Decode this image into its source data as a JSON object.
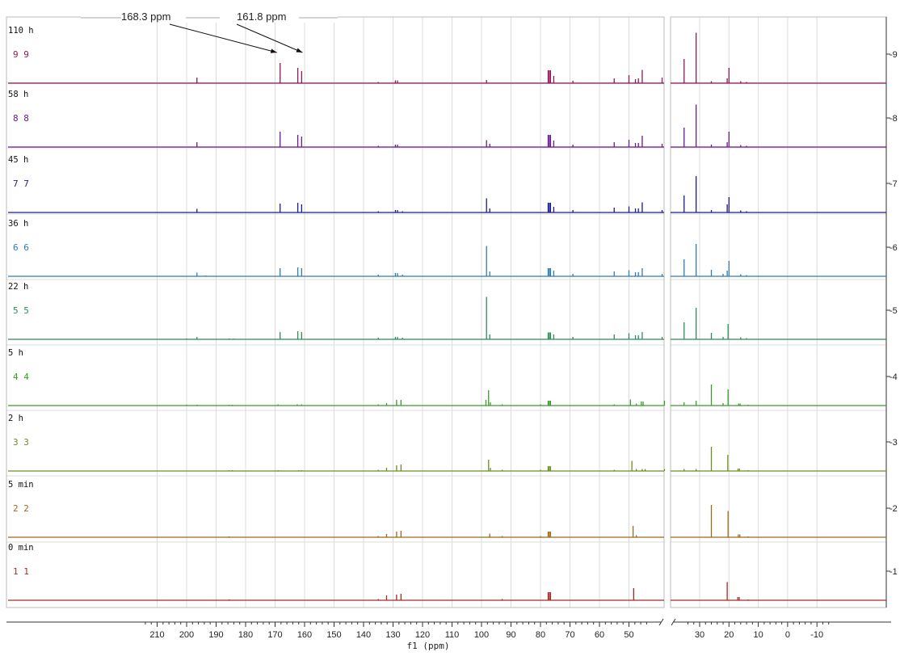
{
  "chart_data": {
    "type": "line",
    "title": "",
    "xlabel": "f1 (ppm)",
    "ylabel": "",
    "x_axis": {
      "reversed": true,
      "break": [
        34,
        43
      ],
      "ticks": [
        210,
        200,
        190,
        180,
        170,
        160,
        150,
        140,
        130,
        120,
        110,
        100,
        90,
        80,
        70,
        60,
        50,
        30,
        20,
        10,
        0,
        -10
      ],
      "tick_labels": [
        "210",
        "200",
        "190",
        "180",
        "170",
        "160",
        "150",
        "140",
        "130",
        "120",
        "110",
        "100",
        "90",
        "80",
        "70",
        "60",
        "50",
        "30",
        "20",
        "10",
        "0",
        "-10"
      ]
    },
    "y_axis": {
      "side": "right",
      "ticks": [
        1,
        2,
        3,
        4,
        5,
        6,
        7,
        8,
        9
      ],
      "tick_labels": [
        "1",
        "2",
        "3",
        "4",
        "5",
        "6",
        "7",
        "8",
        "9"
      ]
    },
    "grid": true,
    "legend": "none",
    "annotations": [
      {
        "text": "168.3 ppm",
        "points_to_ppm": 168.3,
        "trace": 9
      },
      {
        "text": "161.8 ppm",
        "points_to_ppm": 161.8,
        "trace": 9
      }
    ],
    "series": [
      {
        "index": 1,
        "time_label": "0 min",
        "row_label": "1 1",
        "color": "#a52a2a",
        "peaks": [
          [
            185.6,
            0.02
          ],
          [
            135,
            0.03
          ],
          [
            132.2,
            0.12
          ],
          [
            128.8,
            0.14
          ],
          [
            127.3,
            0.16
          ],
          [
            93,
            0.03
          ],
          [
            77.4,
            0.2
          ],
          [
            77.0,
            0.2
          ],
          [
            76.6,
            0.2
          ],
          [
            48.4,
            0.3
          ],
          [
            20.6,
            0.45
          ],
          [
            17.0,
            0.08
          ],
          [
            16.5,
            0.08
          ],
          [
            13.5,
            0.02
          ]
        ]
      },
      {
        "index": 2,
        "time_label": "5 min",
        "row_label": "2 2",
        "color": "#9a6a1a",
        "peaks": [
          [
            185.6,
            0.02
          ],
          [
            135,
            0.03
          ],
          [
            132.2,
            0.08
          ],
          [
            128.8,
            0.14
          ],
          [
            127.3,
            0.16
          ],
          [
            97.2,
            0.09
          ],
          [
            93,
            0.03
          ],
          [
            80,
            0.03
          ],
          [
            77.4,
            0.14
          ],
          [
            77.0,
            0.14
          ],
          [
            76.6,
            0.14
          ],
          [
            48.6,
            0.28
          ],
          [
            47.5,
            0.05
          ],
          [
            26.0,
            0.8
          ],
          [
            20.3,
            0.65
          ],
          [
            16.8,
            0.07
          ],
          [
            16.3,
            0.07
          ],
          [
            13.5,
            0.02
          ]
        ]
      },
      {
        "index": 3,
        "time_label": "2 h",
        "row_label": "3 3",
        "color": "#6b8e23",
        "peaks": [
          [
            185.6,
            0.02
          ],
          [
            184.5,
            0.02
          ],
          [
            169,
            0.02
          ],
          [
            162,
            0.02
          ],
          [
            161,
            0.02
          ],
          [
            135,
            0.03
          ],
          [
            132.2,
            0.08
          ],
          [
            128.8,
            0.14
          ],
          [
            127.3,
            0.16
          ],
          [
            97.6,
            0.28
          ],
          [
            97.0,
            0.08
          ],
          [
            93,
            0.03
          ],
          [
            80,
            0.03
          ],
          [
            77.4,
            0.12
          ],
          [
            77.0,
            0.12
          ],
          [
            76.6,
            0.12
          ],
          [
            55,
            0.03
          ],
          [
            49.0,
            0.25
          ],
          [
            47.5,
            0.05
          ],
          [
            45.5,
            0.05
          ],
          [
            44.5,
            0.05
          ],
          [
            42.0,
            0.05
          ],
          [
            35.3,
            0.05
          ],
          [
            31.2,
            0.05
          ],
          [
            26.0,
            0.6
          ],
          [
            20.4,
            0.4
          ],
          [
            16.9,
            0.06
          ],
          [
            16.4,
            0.06
          ],
          [
            13.5,
            0.02
          ]
        ]
      },
      {
        "index": 4,
        "time_label": "5 h",
        "row_label": "4 4",
        "color": "#3a9a2a",
        "peaks": [
          [
            200,
            0.02
          ],
          [
            196.5,
            0.02
          ],
          [
            185.6,
            0.02
          ],
          [
            184.5,
            0.02
          ],
          [
            169,
            0.03
          ],
          [
            162.5,
            0.03
          ],
          [
            161,
            0.03
          ],
          [
            135,
            0.03
          ],
          [
            132.2,
            0.06
          ],
          [
            128.8,
            0.14
          ],
          [
            127.3,
            0.14
          ],
          [
            98.5,
            0.14
          ],
          [
            97.6,
            0.38
          ],
          [
            97.0,
            0.08
          ],
          [
            93,
            0.03
          ],
          [
            80,
            0.03
          ],
          [
            77.4,
            0.12
          ],
          [
            77.0,
            0.12
          ],
          [
            76.6,
            0.12
          ],
          [
            55,
            0.03
          ],
          [
            49.5,
            0.15
          ],
          [
            47.5,
            0.05
          ],
          [
            45.8,
            0.1
          ],
          [
            45.2,
            0.1
          ],
          [
            42.0,
            0.12
          ],
          [
            35.3,
            0.08
          ],
          [
            31.2,
            0.12
          ],
          [
            26.0,
            0.52
          ],
          [
            22.0,
            0.06
          ],
          [
            20.3,
            0.4
          ],
          [
            16.7,
            0.05
          ],
          [
            16.2,
            0.05
          ],
          [
            13.5,
            0.02
          ]
        ]
      },
      {
        "index": 5,
        "time_label": "22 h",
        "row_label": "5 5",
        "color": "#2e8b57",
        "peaks": [
          [
            200,
            0.02
          ],
          [
            196.5,
            0.06
          ],
          [
            185.6,
            0.02
          ],
          [
            184,
            0.02
          ],
          [
            168.3,
            0.18
          ],
          [
            162.3,
            0.2
          ],
          [
            161.0,
            0.18
          ],
          [
            135,
            0.04
          ],
          [
            129.2,
            0.06
          ],
          [
            128.5,
            0.06
          ],
          [
            126.8,
            0.04
          ],
          [
            98.3,
            1.05
          ],
          [
            97.2,
            0.12
          ],
          [
            77.4,
            0.17
          ],
          [
            77.0,
            0.17
          ],
          [
            76.6,
            0.17
          ],
          [
            75.5,
            0.12
          ],
          [
            69.0,
            0.06
          ],
          [
            55,
            0.12
          ],
          [
            50,
            0.15
          ],
          [
            47.8,
            0.1
          ],
          [
            46.8,
            0.1
          ],
          [
            45.5,
            0.18
          ],
          [
            42.8,
            0.06
          ],
          [
            35.3,
            0.42
          ],
          [
            31.2,
            0.78
          ],
          [
            26.0,
            0.16
          ],
          [
            22.0,
            0.06
          ],
          [
            20.3,
            0.38
          ],
          [
            16.0,
            0.05
          ],
          [
            14.0,
            0.03
          ]
        ]
      },
      {
        "index": 6,
        "time_label": "36 h",
        "row_label": "6 6",
        "color": "#2e7bb0",
        "peaks": [
          [
            196.5,
            0.09
          ],
          [
            193.5,
            0.02
          ],
          [
            168.3,
            0.2
          ],
          [
            162.3,
            0.22
          ],
          [
            161.0,
            0.2
          ],
          [
            135,
            0.04
          ],
          [
            129.2,
            0.08
          ],
          [
            128.5,
            0.08
          ],
          [
            126.8,
            0.04
          ],
          [
            98.3,
            0.75
          ],
          [
            97.2,
            0.12
          ],
          [
            77.4,
            0.2
          ],
          [
            77.0,
            0.2
          ],
          [
            76.6,
            0.2
          ],
          [
            75.5,
            0.14
          ],
          [
            69.0,
            0.06
          ],
          [
            55,
            0.12
          ],
          [
            50,
            0.15
          ],
          [
            47.8,
            0.1
          ],
          [
            46.8,
            0.1
          ],
          [
            45.5,
            0.2
          ],
          [
            42.8,
            0.06
          ],
          [
            35.3,
            0.42
          ],
          [
            31.2,
            0.8
          ],
          [
            26.0,
            0.16
          ],
          [
            22.0,
            0.06
          ],
          [
            20.6,
            0.14
          ],
          [
            20.0,
            0.38
          ],
          [
            16.0,
            0.05
          ],
          [
            14.0,
            0.03
          ]
        ]
      },
      {
        "index": 7,
        "time_label": "45 h",
        "row_label": "7 7",
        "color": "#1a1a8a",
        "peaks": [
          [
            196.5,
            0.09
          ],
          [
            168.3,
            0.22
          ],
          [
            162.3,
            0.24
          ],
          [
            161.0,
            0.2
          ],
          [
            135,
            0.03
          ],
          [
            129.2,
            0.06
          ],
          [
            128.5,
            0.06
          ],
          [
            126.8,
            0.03
          ],
          [
            98.3,
            0.35
          ],
          [
            97.2,
            0.1
          ],
          [
            77.4,
            0.24
          ],
          [
            77.0,
            0.24
          ],
          [
            76.6,
            0.24
          ],
          [
            75.5,
            0.14
          ],
          [
            69.0,
            0.06
          ],
          [
            55,
            0.12
          ],
          [
            50,
            0.15
          ],
          [
            47.8,
            0.1
          ],
          [
            46.8,
            0.1
          ],
          [
            45.5,
            0.25
          ],
          [
            42.8,
            0.06
          ],
          [
            35.3,
            0.42
          ],
          [
            31.2,
            0.9
          ],
          [
            26.0,
            0.06
          ],
          [
            20.6,
            0.2
          ],
          [
            20.0,
            0.38
          ],
          [
            16.0,
            0.05
          ],
          [
            14.0,
            0.03
          ]
        ]
      },
      {
        "index": 8,
        "time_label": "58 h",
        "row_label": "8 8",
        "color": "#6a1a8a",
        "peaks": [
          [
            196.5,
            0.12
          ],
          [
            168.3,
            0.38
          ],
          [
            162.3,
            0.3
          ],
          [
            161.0,
            0.26
          ],
          [
            135,
            0.03
          ],
          [
            129.2,
            0.06
          ],
          [
            128.5,
            0.06
          ],
          [
            98.3,
            0.17
          ],
          [
            97.2,
            0.08
          ],
          [
            77.4,
            0.3
          ],
          [
            77.0,
            0.3
          ],
          [
            76.6,
            0.3
          ],
          [
            75.5,
            0.16
          ],
          [
            69.0,
            0.06
          ],
          [
            55,
            0.12
          ],
          [
            50,
            0.18
          ],
          [
            47.8,
            0.1
          ],
          [
            46.8,
            0.1
          ],
          [
            45.5,
            0.28
          ],
          [
            42.8,
            0.08
          ],
          [
            35.3,
            0.48
          ],
          [
            31.2,
            1.05
          ],
          [
            26.0,
            0.06
          ],
          [
            20.6,
            0.12
          ],
          [
            20.0,
            0.38
          ],
          [
            16.0,
            0.05
          ],
          [
            14.0,
            0.03
          ]
        ]
      },
      {
        "index": 9,
        "time_label": "110 h",
        "row_label": "9 9",
        "color": "#8b1a5a",
        "peaks": [
          [
            196.5,
            0.14
          ],
          [
            168.3,
            0.5
          ],
          [
            162.3,
            0.38
          ],
          [
            161.0,
            0.3
          ],
          [
            135,
            0.03
          ],
          [
            129.2,
            0.07
          ],
          [
            128.5,
            0.07
          ],
          [
            98.3,
            0.08
          ],
          [
            77.4,
            0.32
          ],
          [
            77.0,
            0.32
          ],
          [
            76.6,
            0.32
          ],
          [
            75.5,
            0.18
          ],
          [
            69.0,
            0.06
          ],
          [
            55,
            0.12
          ],
          [
            50,
            0.2
          ],
          [
            47.8,
            0.1
          ],
          [
            46.8,
            0.12
          ],
          [
            45.5,
            0.33
          ],
          [
            42.8,
            0.14
          ],
          [
            35.3,
            0.6
          ],
          [
            31.2,
            1.25
          ],
          [
            26.0,
            0.05
          ],
          [
            20.6,
            0.12
          ],
          [
            20.0,
            0.38
          ],
          [
            16.0,
            0.05
          ],
          [
            14.0,
            0.03
          ]
        ]
      }
    ]
  }
}
